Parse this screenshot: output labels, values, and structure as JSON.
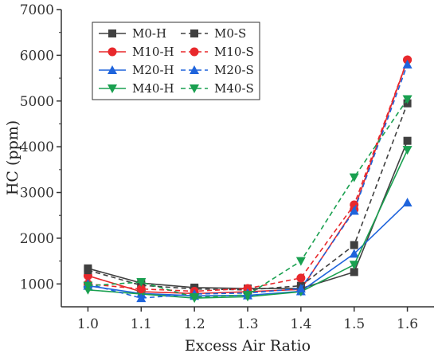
{
  "chart_data": {
    "type": "line",
    "xlabel": "Excess Air Ratio",
    "ylabel": "HC (ppm)",
    "x": [
      1.0,
      1.1,
      1.2,
      1.3,
      1.4,
      1.5,
      1.6
    ],
    "xlim": [
      0.95,
      1.65
    ],
    "ylim": [
      500,
      7000
    ],
    "x_ticks": [
      "1.0",
      "1.1",
      "1.2",
      "1.3",
      "1.4",
      "1.5",
      "1.6"
    ],
    "y_ticks": [
      1000,
      2000,
      3000,
      4000,
      5000,
      6000,
      7000
    ],
    "grid": false,
    "legend_position": "top-left",
    "series": [
      {
        "name": "M0-H",
        "color": "#404040",
        "marker": "square",
        "dashed": false,
        "values": [
          1340,
          1020,
          920,
          900,
          900,
          1260,
          4130
        ]
      },
      {
        "name": "M10-H",
        "color": "#e8282c",
        "marker": "circle",
        "dashed": false,
        "values": [
          1180,
          830,
          790,
          830,
          880,
          2630,
          5900
        ]
      },
      {
        "name": "M20-H",
        "color": "#1f64dc",
        "marker": "triangle-up",
        "dashed": false,
        "values": [
          960,
          790,
          740,
          750,
          840,
          1660,
          2780
        ]
      },
      {
        "name": "M40-H",
        "color": "#1aa050",
        "marker": "triangle-down",
        "dashed": false,
        "values": [
          870,
          780,
          690,
          720,
          830,
          1420,
          3930
        ]
      },
      {
        "name": "M0-S",
        "color": "#404040",
        "marker": "square",
        "dashed": true,
        "values": [
          1300,
          970,
          890,
          870,
          960,
          1850,
          4950
        ]
      },
      {
        "name": "M10-S",
        "color": "#e8282c",
        "marker": "circle",
        "dashed": true,
        "values": [
          1000,
          890,
          840,
          900,
          1130,
          2730,
          5900
        ]
      },
      {
        "name": "M20-S",
        "color": "#1f64dc",
        "marker": "triangle-up",
        "dashed": true,
        "values": [
          1000,
          690,
          780,
          800,
          900,
          2600,
          5800
        ]
      },
      {
        "name": "M40-S",
        "color": "#1aa050",
        "marker": "triangle-down",
        "dashed": true,
        "values": [
          960,
          1040,
          710,
          760,
          1500,
          3330,
          5040
        ]
      }
    ]
  }
}
